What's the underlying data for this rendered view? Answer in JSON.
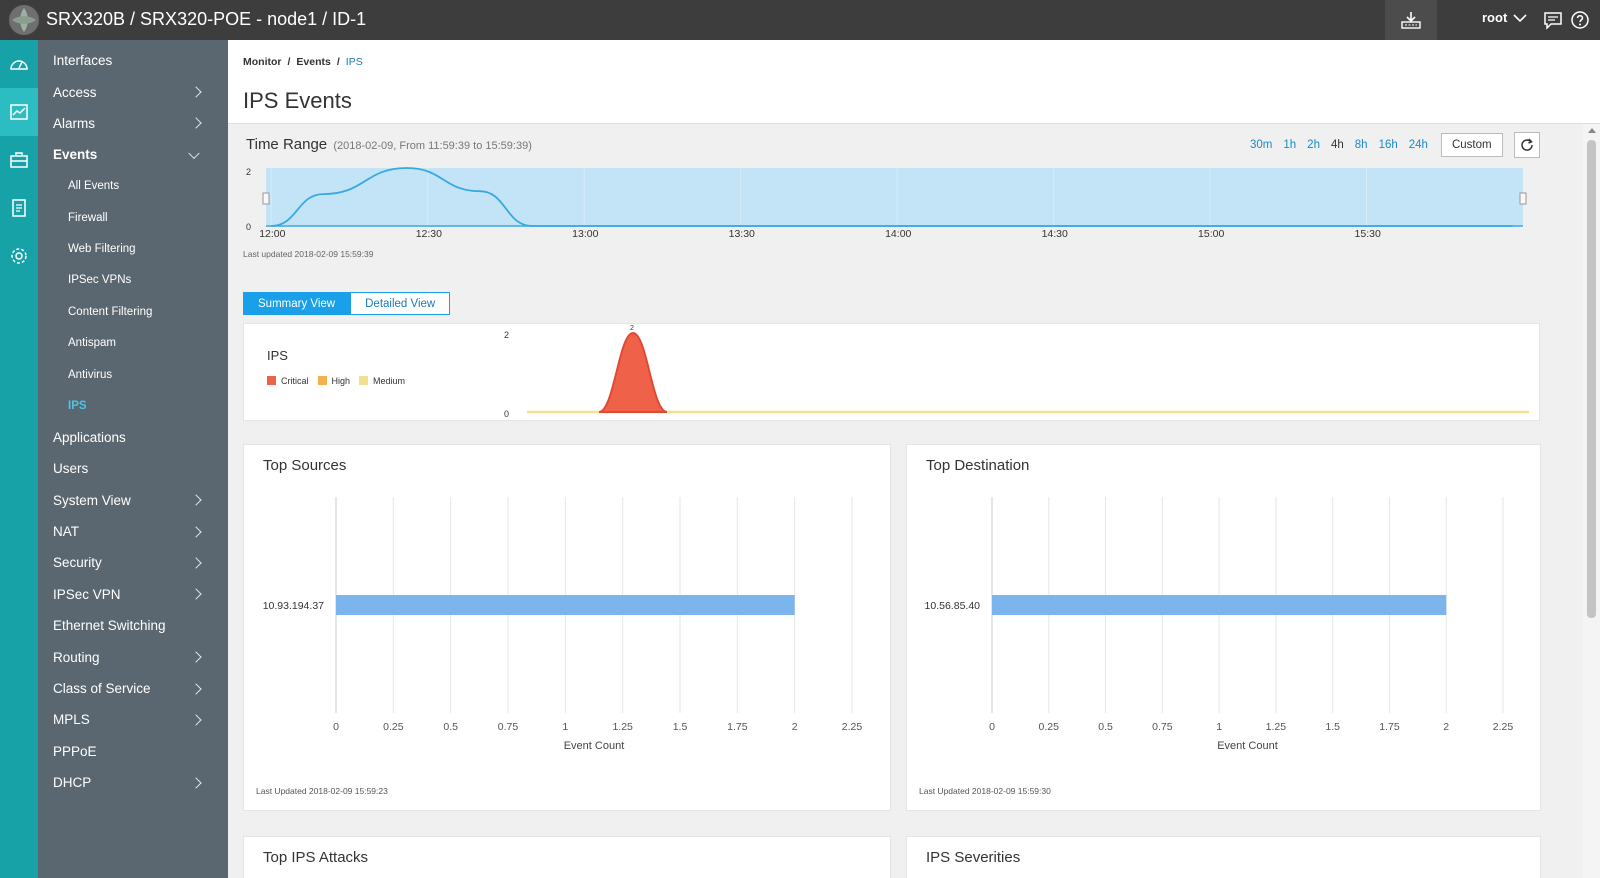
{
  "app": {
    "title": "SRX320B / SRX320-POE - node1 / ID-1",
    "user": "root"
  },
  "rail": [
    "dashboard-icon",
    "monitor-icon",
    "configure-icon",
    "reports-icon",
    "settings-icon"
  ],
  "sidebar": {
    "items": [
      {
        "label": "Interfaces",
        "chevron": false
      },
      {
        "label": "Access",
        "chevron": true
      },
      {
        "label": "Alarms",
        "chevron": true
      },
      {
        "label": "Events",
        "expanded": true
      },
      {
        "label": "All Events",
        "sub": true
      },
      {
        "label": "Firewall",
        "sub": true
      },
      {
        "label": "Web Filtering",
        "sub": true
      },
      {
        "label": "IPSec VPNs",
        "sub": true
      },
      {
        "label": "Content Filtering",
        "sub": true
      },
      {
        "label": "Antispam",
        "sub": true
      },
      {
        "label": "Antivirus",
        "sub": true
      },
      {
        "label": "IPS",
        "sub": true,
        "active": true
      },
      {
        "label": "Applications",
        "chevron": false
      },
      {
        "label": "Users",
        "chevron": false
      },
      {
        "label": "System View",
        "chevron": true
      },
      {
        "label": "NAT",
        "chevron": true
      },
      {
        "label": "Security",
        "chevron": true
      },
      {
        "label": "IPSec VPN",
        "chevron": true
      },
      {
        "label": "Ethernet Switching",
        "chevron": false
      },
      {
        "label": "Routing",
        "chevron": true
      },
      {
        "label": "Class of Service",
        "chevron": true
      },
      {
        "label": "MPLS",
        "chevron": true
      },
      {
        "label": "PPPoE",
        "chevron": false
      },
      {
        "label": "DHCP",
        "chevron": true
      }
    ]
  },
  "breadcrumb": {
    "monitor": "Monitor",
    "events": "Events",
    "current": "IPS",
    "sep": "/"
  },
  "page": {
    "title": "IPS Events"
  },
  "time_range": {
    "label": "Time Range",
    "detail": "(2018-02-09, From 11:59:39 to 15:59:39)",
    "options": [
      "30m",
      "1h",
      "2h",
      "4h",
      "8h",
      "16h",
      "24h"
    ],
    "selected": "4h",
    "custom": "Custom",
    "last_updated": "Last updated 2018-02-09 15:59:39"
  },
  "timeline": {
    "y_ticks": [
      "2",
      "0"
    ],
    "x_ticks": [
      "12:00",
      "12:30",
      "13:00",
      "13:30",
      "14:00",
      "14:30",
      "15:00",
      "15:30"
    ],
    "fill": "#c3e4f7",
    "line": "#36a9e1",
    "points": [
      {
        "t": "12:00",
        "v": 0
      },
      {
        "t": "12:10",
        "v": 1.1
      },
      {
        "t": "12:26",
        "v": 2
      },
      {
        "t": "12:40",
        "v": 1.2
      },
      {
        "t": "12:50",
        "v": 0
      },
      {
        "t": "15:58",
        "v": 0
      }
    ]
  },
  "views": {
    "summary": "Summary View",
    "detailed": "Detailed View"
  },
  "severity_chart": {
    "title": "IPS",
    "legend": [
      {
        "name": "Critical",
        "color": "#f0614a"
      },
      {
        "name": "High",
        "color": "#f4b04f"
      },
      {
        "name": "Medium",
        "color": "#f2df8f"
      }
    ],
    "y_ticks": [
      "2",
      "0"
    ],
    "peak_label": "2"
  },
  "top_sources": {
    "title": "Top Sources",
    "last_updated": "Last Updated 2018-02-09 15:59:23"
  },
  "top_destination": {
    "title": "Top Destination",
    "last_updated": "Last Updated 2018-02-09 15:59:30"
  },
  "bottom_cards": {
    "left": "Top IPS Attacks",
    "right": "IPS Severities"
  },
  "chart_data": [
    {
      "type": "area",
      "x": [
        "12:00",
        "12:10",
        "12:26",
        "12:40",
        "12:50",
        "15:58"
      ],
      "y": [
        0,
        1.1,
        2,
        1.2,
        0,
        0
      ],
      "xlabel": "",
      "ylabel": "",
      "ylim": [
        0,
        2
      ],
      "series": [
        {
          "name": "",
          "values": [
            0,
            1.1,
            2,
            1.2,
            0,
            0
          ]
        }
      ]
    },
    {
      "type": "area",
      "title": "IPS",
      "ylim": [
        0,
        2
      ],
      "series": [
        {
          "name": "Critical",
          "color": "#f0614a",
          "peak_at": "12:30",
          "peak": 2
        },
        {
          "name": "High",
          "color": "#f4b04f",
          "peak": 0
        },
        {
          "name": "Medium",
          "color": "#f2df8f",
          "peak": 0
        }
      ],
      "data_labels": [
        "2"
      ]
    },
    {
      "type": "bar",
      "title": "Top Sources",
      "orientation": "horizontal",
      "categories": [
        "10.93.194.37"
      ],
      "values": [
        2
      ],
      "xlabel": "Event Count",
      "xlim": [
        0,
        2.25
      ],
      "ticks": [
        "0",
        "0.25",
        "0.5",
        "0.75",
        "1",
        "1.25",
        "1.5",
        "1.75",
        "2",
        "2.25"
      ],
      "color": "#7cb5ec"
    },
    {
      "type": "bar",
      "title": "Top Destination",
      "orientation": "horizontal",
      "categories": [
        "10.56.85.40"
      ],
      "values": [
        2
      ],
      "xlabel": "Event Count",
      "xlim": [
        0,
        2.25
      ],
      "ticks": [
        "0",
        "0.25",
        "0.5",
        "0.75",
        "1",
        "1.25",
        "1.5",
        "1.75",
        "2",
        "2.25"
      ],
      "color": "#7cb5ec"
    }
  ]
}
